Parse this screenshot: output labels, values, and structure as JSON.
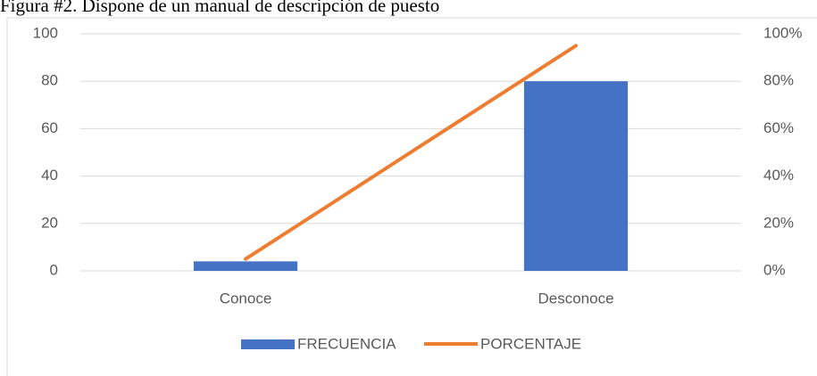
{
  "chart_data": {
    "type": "bar",
    "title": "Figura #2. Dispone de un manual de descripción de puesto",
    "categories": [
      "Conoce",
      "Desconoce"
    ],
    "series": [
      {
        "name": "FRECUENCIA",
        "type": "bar",
        "color": "#4472c4",
        "values": [
          4,
          80
        ]
      },
      {
        "name": "PORCENTAJE",
        "type": "line",
        "color": "#ed7d31",
        "axis": "y2",
        "values": [
          5,
          95
        ]
      }
    ],
    "ylim": [
      0,
      100
    ],
    "yticks": [
      0,
      20,
      40,
      60,
      80,
      100
    ],
    "y2lim": [
      0,
      100
    ],
    "y2ticks": [
      {
        "value": 0,
        "label": "0%"
      },
      {
        "value": 20,
        "label": "20%"
      },
      {
        "value": 40,
        "label": "40%"
      },
      {
        "value": 60,
        "label": "60%"
      },
      {
        "value": 80,
        "label": "80%"
      },
      {
        "value": 100,
        "label": "100%"
      }
    ],
    "grid": true,
    "legend": "bottom"
  }
}
